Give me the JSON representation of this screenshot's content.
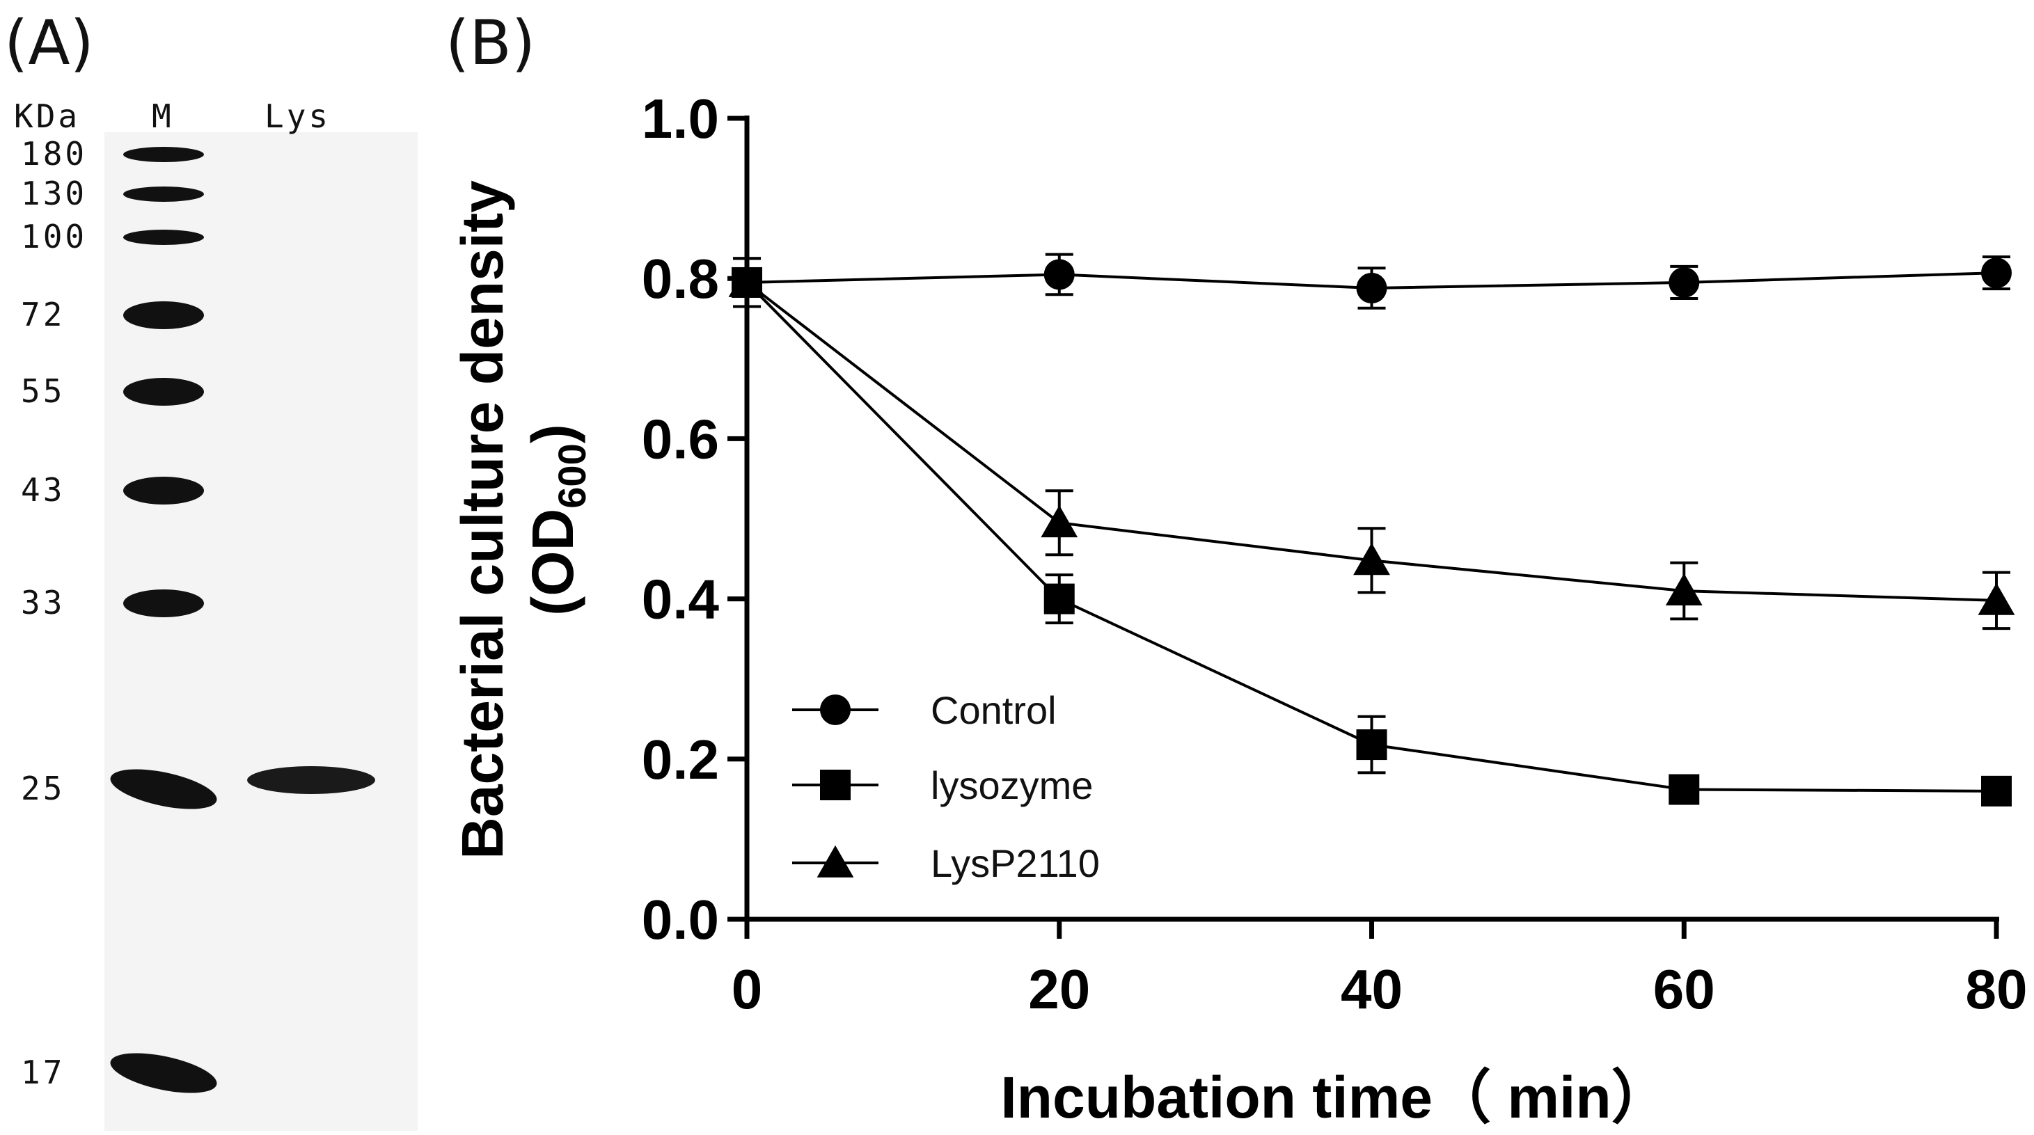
{
  "panel_a": {
    "label": "(A)",
    "unit_label": "KDa",
    "lane_labels": [
      "M",
      "Lys"
    ],
    "markers": [
      180,
      130,
      100,
      72,
      55,
      43,
      33,
      25,
      17
    ]
  },
  "panel_b": {
    "label": "(B)"
  },
  "chart_data": {
    "type": "line",
    "title": "",
    "xlabel": "Incubation time（ min）",
    "ylabel_main": "Bacterial culture density",
    "ylabel_unit_prefix": "(OD",
    "ylabel_unit_sub": "600",
    "ylabel_unit_suffix": ")",
    "x": [
      0,
      20,
      40,
      60,
      80
    ],
    "xlim": [
      0,
      80
    ],
    "ylim": [
      0,
      1.0
    ],
    "xticks": [
      "0",
      "20",
      "40",
      "60",
      "80"
    ],
    "yticks": [
      "0.0",
      "0.2",
      "0.4",
      "0.6",
      "0.8",
      "1.0"
    ],
    "legend_position": "lower-left",
    "series": [
      {
        "name": "Control",
        "marker": "circle",
        "values": [
          0.795,
          0.805,
          0.788,
          0.795,
          0.807
        ],
        "errors": [
          0.03,
          0.025,
          0.025,
          0.02,
          0.02
        ]
      },
      {
        "name": "lysozyme",
        "marker": "square",
        "values": [
          0.795,
          0.4,
          0.218,
          0.162,
          0.16
        ],
        "errors": [
          0.03,
          0.03,
          0.035,
          0.0,
          0.0
        ]
      },
      {
        "name": "LysP2110",
        "marker": "triangle",
        "values": [
          0.795,
          0.495,
          0.448,
          0.41,
          0.398
        ],
        "errors": [
          0.03,
          0.04,
          0.04,
          0.035,
          0.035
        ]
      }
    ]
  }
}
